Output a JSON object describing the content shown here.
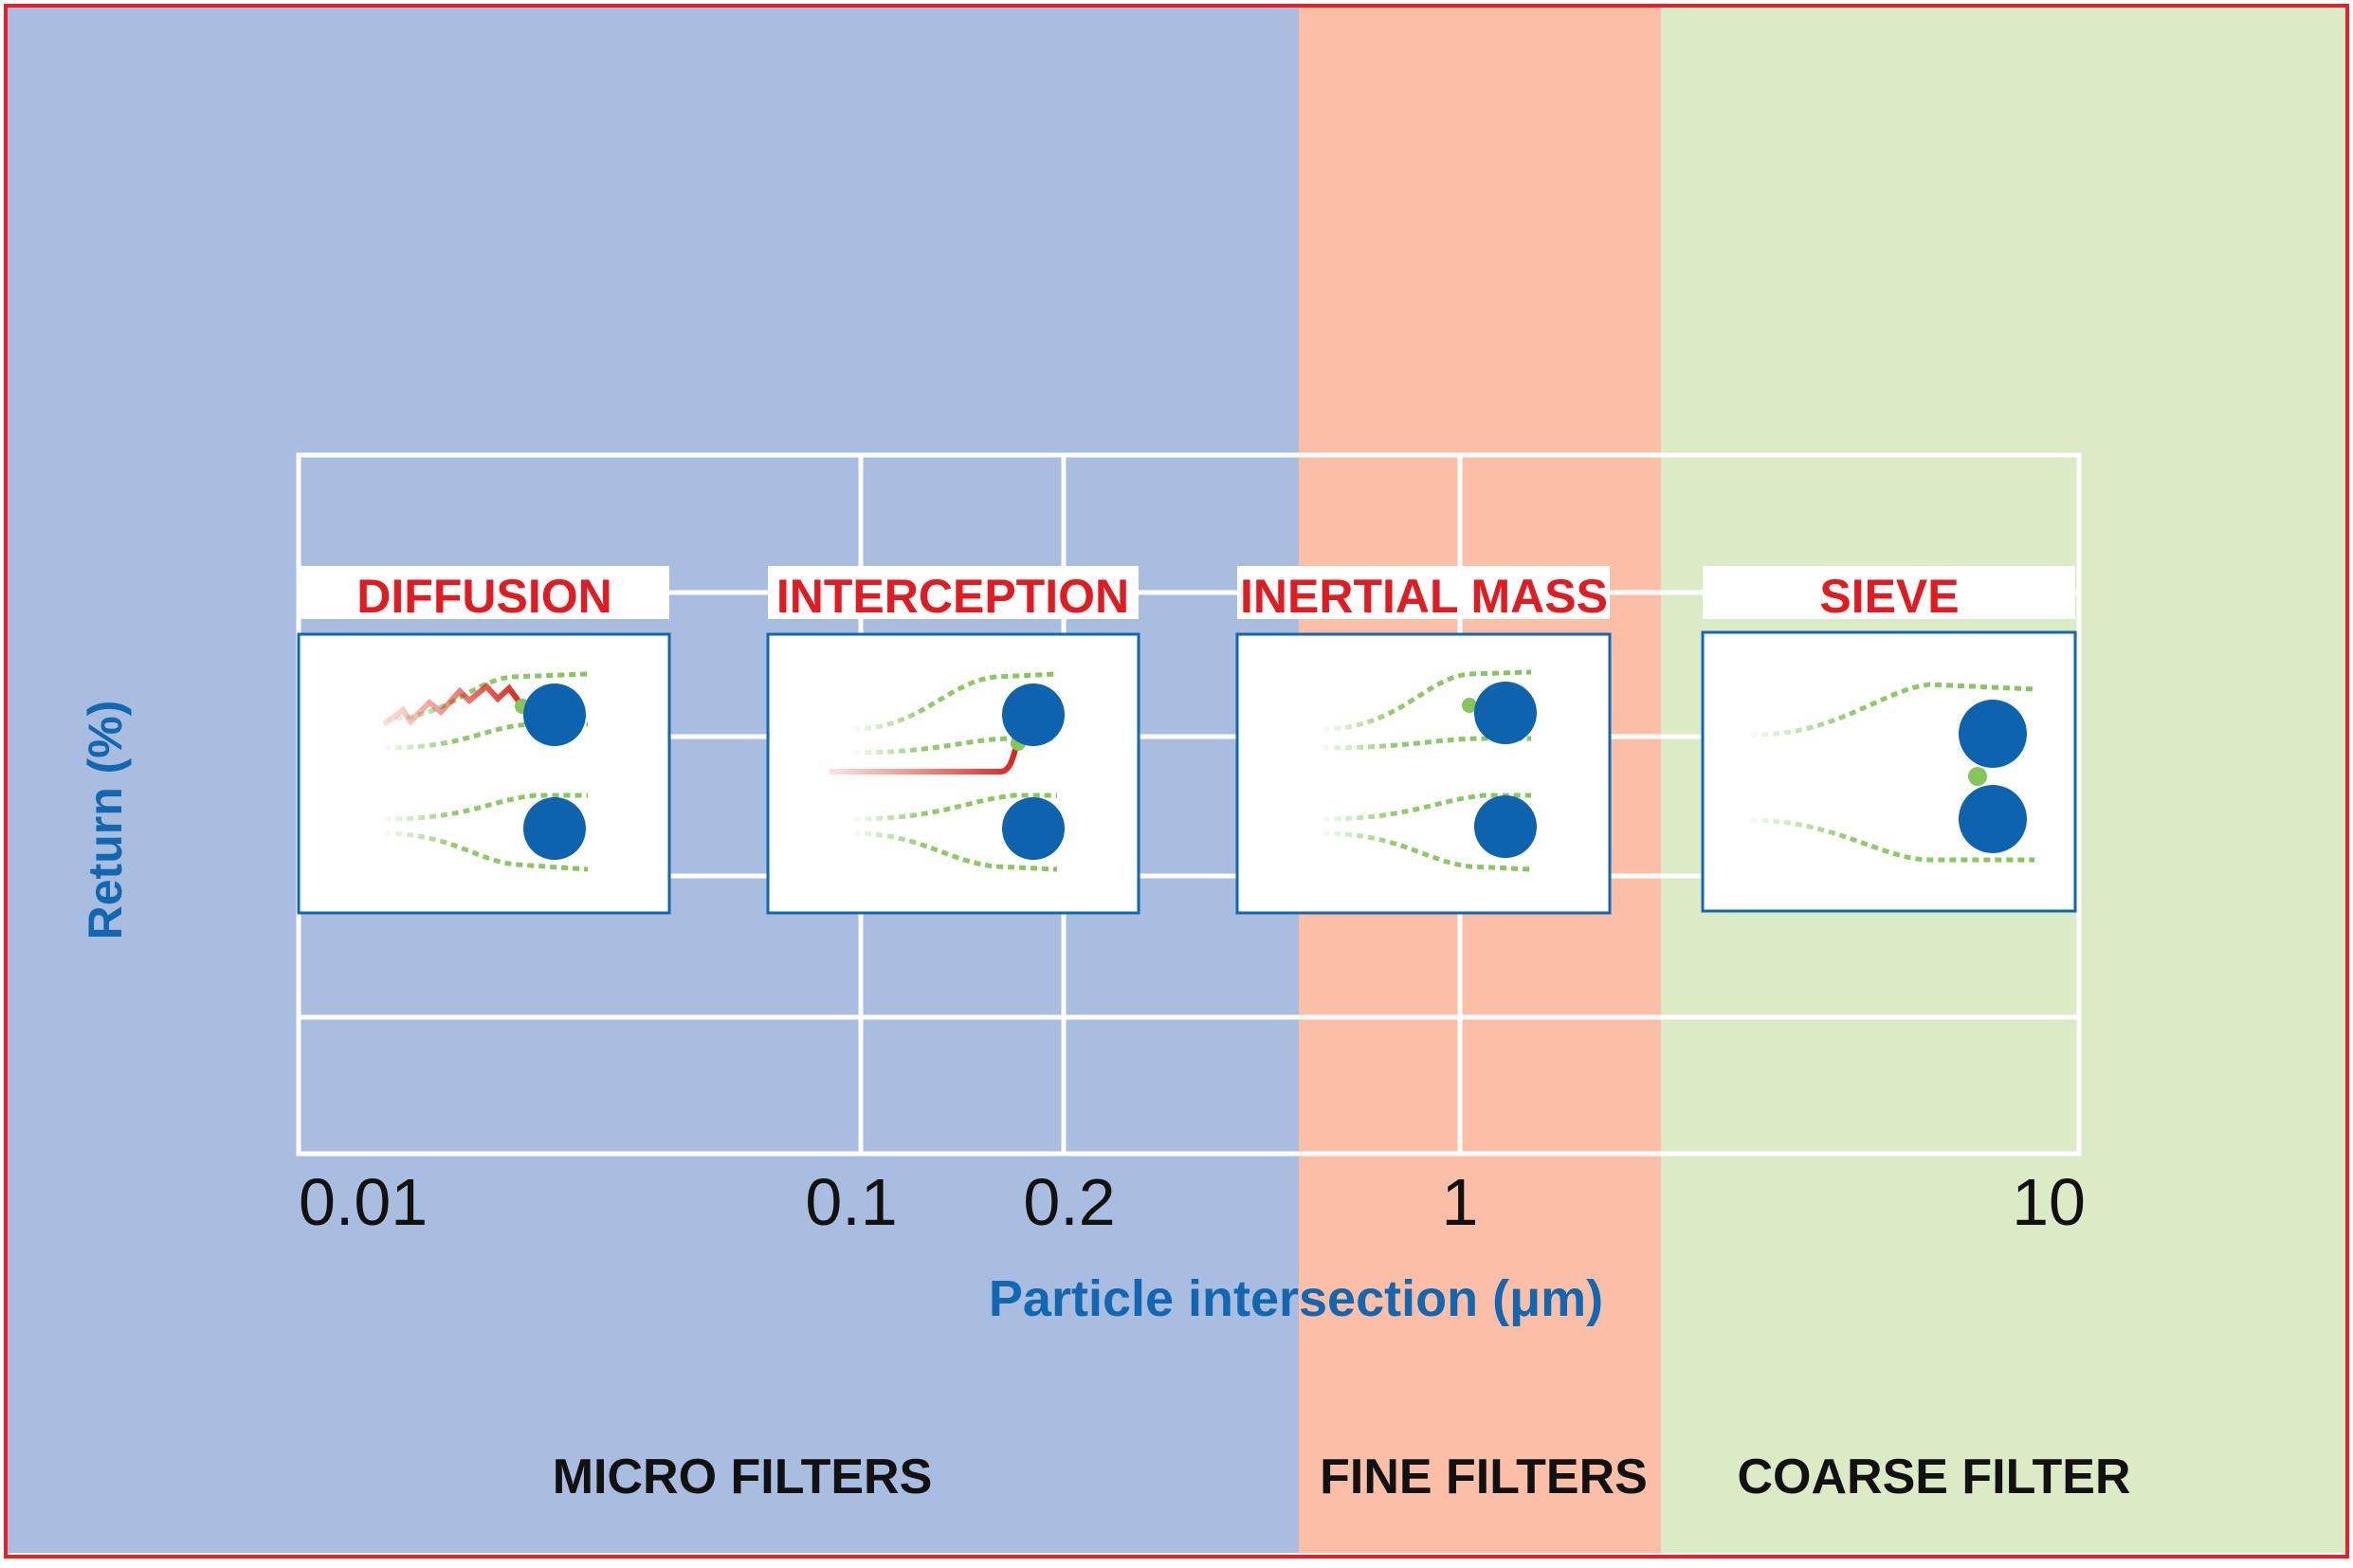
{
  "colors": {
    "micro_zone": "#A9BDE0",
    "fine_zone": "#FBBFA8",
    "coarse_zone": "#DAEBC6",
    "border": "#E8202A",
    "grid": "#FFFFFF",
    "mechanism_title": "#E11B22",
    "axis_label": "#1267B1",
    "fiber": "#0D63AE",
    "flow_line": "#86C55A",
    "particle_path": "#E5402E"
  },
  "axis": {
    "y_label": "Return (%)",
    "x_label": "Particle intersection (μm)",
    "x_ticks": [
      "0.01",
      "0.1",
      "0.2",
      "1",
      "10"
    ],
    "x_scale": "log"
  },
  "zones": [
    {
      "label": "MICRO FILTERS",
      "from": 0.001,
      "to": 0.5
    },
    {
      "label": "FINE FILTERS",
      "from": 0.5,
      "to": 2
    },
    {
      "label": "COARSE FILTER",
      "from": 2,
      "to": 100
    }
  ],
  "mechanisms": [
    {
      "label": "DIFFUSION",
      "icon": "diffusion-icon"
    },
    {
      "label": "INTERCEPTION",
      "icon": "interception-icon"
    },
    {
      "label": "INERTIAL MASS",
      "icon": "inertial-mass-icon"
    },
    {
      "label": "SIEVE",
      "icon": "sieve-icon"
    }
  ]
}
